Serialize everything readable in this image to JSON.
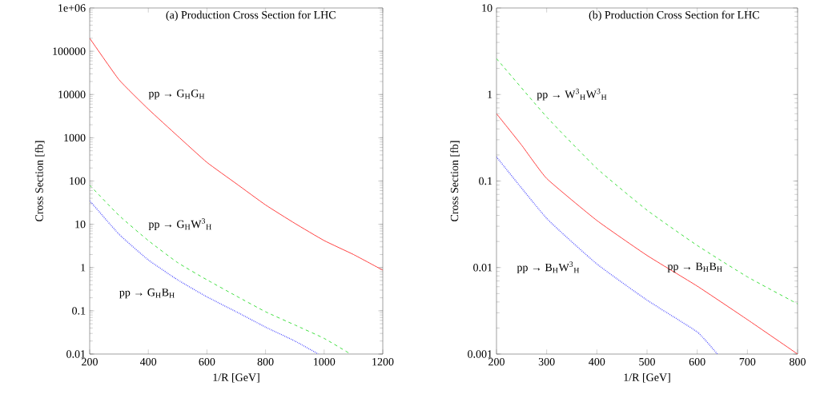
{
  "chart_data": [
    {
      "type": "line",
      "title": "(a) Production Cross Section for LHC",
      "xlabel": "1/R [GeV]",
      "ylabel": "Cross Section [fb]",
      "log": "y",
      "marker": "none",
      "xlim": [
        200,
        1200
      ],
      "ylim": [
        0.01,
        1000000
      ],
      "xticks": [
        200,
        400,
        600,
        800,
        1000,
        1200
      ],
      "yticks": [
        0.01,
        0.1,
        1,
        10,
        100,
        1000,
        10000,
        100000,
        {
          "value": 1000000,
          "label": "1e+06"
        }
      ],
      "series": [
        {
          "color": "#ff3333",
          "line_style": "solid",
          "x": [
            200,
            300,
            400,
            500,
            600,
            700,
            800,
            900,
            1000,
            1100,
            1200
          ],
          "values": [
            200000,
            22000,
            4600,
            1100,
            270,
            87,
            28,
            10.5,
            4.2,
            2.0,
            0.87
          ]
        },
        {
          "color": "#33dd33",
          "line_style": "dashed",
          "x": [
            200,
            300,
            400,
            500,
            600,
            700,
            800,
            900,
            1000,
            1090
          ],
          "values": [
            80,
            16,
            4.2,
            1.3,
            0.52,
            0.22,
            0.095,
            0.047,
            0.023,
            0.01
          ]
        },
        {
          "color": "#5555ff",
          "line_style": "dotted",
          "x": [
            200,
            300,
            400,
            500,
            600,
            700,
            800,
            900,
            980
          ],
          "values": [
            35,
            5.9,
            1.5,
            0.52,
            0.21,
            0.095,
            0.042,
            0.02,
            0.01
          ]
        }
      ],
      "annotations": [
        "pp → G$_{H}$G$_{H}$",
        "pp → G$_{H}$W$^{3}$$_{H}$",
        "pp  → G$_{H}$B$_{H}$"
      ]
    },
    {
      "type": "line",
      "title": "(b) Production Cross Section for LHC",
      "xlabel": "1/R [GeV]",
      "ylabel": "Cross Section [fb]",
      "log": "y",
      "marker": "none",
      "xlim": [
        200,
        800
      ],
      "ylim": [
        0.001,
        10
      ],
      "xticks": [
        200,
        300,
        400,
        500,
        600,
        700,
        800
      ],
      "yticks": [
        0.001,
        0.01,
        0.1,
        1,
        10
      ],
      "series": [
        {
          "color": "#33dd33",
          "line_style": "dashed",
          "x": [
            200,
            300,
            400,
            500,
            600,
            700,
            800
          ],
          "values": [
            2.6,
            0.55,
            0.14,
            0.046,
            0.018,
            0.0078,
            0.0038
          ]
        },
        {
          "color": "#ff3333",
          "line_style": "solid",
          "x": [
            200,
            250,
            300,
            400,
            500,
            600,
            700,
            800
          ],
          "values": [
            0.6,
            0.26,
            0.107,
            0.035,
            0.0138,
            0.0061,
            0.0025,
            0.001
          ]
        },
        {
          "color": "#5555ff",
          "line_style": "dotted",
          "x": [
            200,
            300,
            400,
            500,
            600,
            640
          ],
          "values": [
            0.19,
            0.037,
            0.011,
            0.0042,
            0.0018,
            0.001
          ]
        }
      ],
      "annotations": [
        "pp → W$^{3}$$_{H}$W$^{3}$$_{H}$",
        "pp → B$_{H}$W$^{3}$$_{H}$",
        "pp → B$_{H}$B$_{H}$"
      ]
    }
  ]
}
